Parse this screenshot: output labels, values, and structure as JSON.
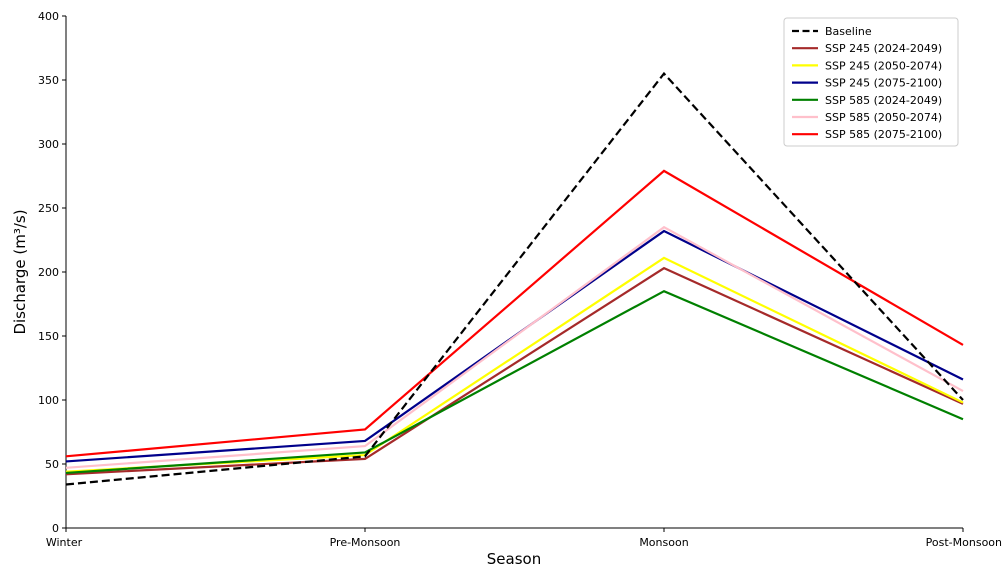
{
  "chart_data": {
    "type": "line",
    "xlabel": "Season",
    "ylabel": "Discharge (m³/s)",
    "categories": [
      "Winter",
      "Pre-Monsoon",
      "Monsoon",
      "Post-Monsoon"
    ],
    "ylim": [
      0,
      400
    ],
    "yticks": [
      0,
      50,
      100,
      150,
      200,
      250,
      300,
      350,
      400
    ],
    "grid": false,
    "legend_position": "top-right",
    "series": [
      {
        "name": "Baseline",
        "color": "#000000",
        "dashed": true,
        "values": [
          34,
          56,
          355,
          100
        ]
      },
      {
        "name": "SSP 245 (2024-2049)",
        "color": "#a52a2a",
        "dashed": false,
        "values": [
          42,
          54,
          203,
          97
        ]
      },
      {
        "name": "SSP 245 (2050-2074)",
        "color": "#ffff00",
        "dashed": false,
        "values": [
          44,
          57,
          211,
          98
        ]
      },
      {
        "name": "SSP 245 (2075-2100)",
        "color": "#00008b",
        "dashed": false,
        "values": [
          52,
          68,
          232,
          116
        ]
      },
      {
        "name": "SSP 585 (2024-2049)",
        "color": "#008000",
        "dashed": false,
        "values": [
          43,
          59,
          185,
          85
        ]
      },
      {
        "name": "SSP 585 (2050-2074)",
        "color": "#ffc0cb",
        "dashed": false,
        "values": [
          47,
          64,
          235,
          107
        ]
      },
      {
        "name": "SSP 585 (2075-2100)",
        "color": "#ff0000",
        "dashed": false,
        "values": [
          56,
          77,
          279,
          143
        ]
      }
    ]
  }
}
